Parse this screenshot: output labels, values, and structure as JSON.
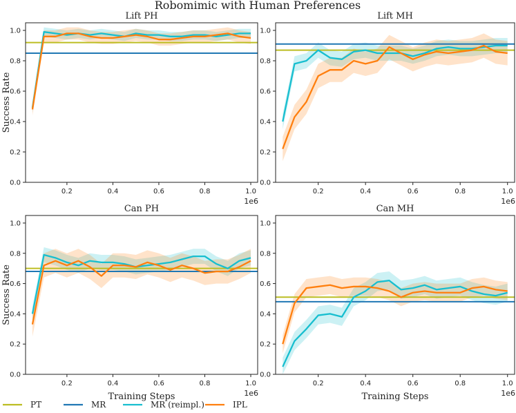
{
  "figure": {
    "title": "Robomimic with Human Preferences",
    "xlabel": "Training Steps",
    "ylabel": "Success Rate",
    "x_exponent_label": "1e6"
  },
  "legend": {
    "entries": [
      {
        "name": "PT",
        "color": "#bcbd22"
      },
      {
        "name": "MR",
        "color": "#1f77b4"
      },
      {
        "name": "MR (reimpl.)",
        "color": "#17becf"
      },
      {
        "name": "IPL",
        "color": "#ff7f0e"
      }
    ]
  },
  "chart_data": [
    {
      "type": "line",
      "title": "Lift PH",
      "xlabel": "",
      "ylabel": "Success Rate",
      "xlim": [
        0.02,
        1.03
      ],
      "ylim": [
        0.0,
        1.05
      ],
      "xticks": [
        "0.2",
        "0.4",
        "0.6",
        "0.8",
        "1.0"
      ],
      "yticks": [
        "0.0",
        "0.2",
        "0.4",
        "0.6",
        "0.8",
        "1.0"
      ],
      "baselines": [
        {
          "name": "PT",
          "value": 0.92
        },
        {
          "name": "MR",
          "value": 0.85
        }
      ],
      "x": [
        0.05,
        0.1,
        0.15,
        0.2,
        0.25,
        0.3,
        0.35,
        0.4,
        0.45,
        0.5,
        0.55,
        0.6,
        0.65,
        0.7,
        0.75,
        0.8,
        0.85,
        0.9,
        0.95,
        1.0
      ],
      "series": [
        {
          "name": "MR (reimpl.)",
          "values": [
            0.49,
            0.99,
            0.98,
            0.97,
            0.98,
            0.97,
            0.98,
            0.97,
            0.96,
            0.98,
            0.97,
            0.97,
            0.96,
            0.96,
            0.97,
            0.97,
            0.96,
            0.97,
            0.98,
            0.98
          ],
          "band": 0.03
        },
        {
          "name": "IPL",
          "values": [
            0.48,
            0.96,
            0.96,
            0.98,
            0.98,
            0.96,
            0.95,
            0.95,
            0.96,
            0.97,
            0.96,
            0.94,
            0.94,
            0.95,
            0.96,
            0.96,
            0.97,
            0.98,
            0.96,
            0.95
          ],
          "band": 0.04
        }
      ]
    },
    {
      "type": "line",
      "title": "Lift MH",
      "xlabel": "",
      "ylabel": "",
      "xlim": [
        0.02,
        1.03
      ],
      "ylim": [
        0.0,
        1.05
      ],
      "xticks": [
        "0.2",
        "0.4",
        "0.6",
        "0.8",
        "1.0"
      ],
      "yticks": [
        "0.0",
        "0.2",
        "0.4",
        "0.6",
        "0.8",
        "1.0"
      ],
      "baselines": [
        {
          "name": "PT",
          "value": 0.87
        },
        {
          "name": "MR",
          "value": 0.91
        }
      ],
      "x": [
        0.05,
        0.1,
        0.15,
        0.2,
        0.25,
        0.3,
        0.35,
        0.4,
        0.45,
        0.5,
        0.55,
        0.6,
        0.65,
        0.7,
        0.75,
        0.8,
        0.85,
        0.9,
        0.95,
        1.0
      ],
      "series": [
        {
          "name": "MR (reimpl.)",
          "values": [
            0.4,
            0.78,
            0.8,
            0.87,
            0.82,
            0.81,
            0.86,
            0.87,
            0.85,
            0.85,
            0.85,
            0.83,
            0.85,
            0.88,
            0.89,
            0.88,
            0.88,
            0.89,
            0.9,
            0.9
          ],
          "band": 0.05
        },
        {
          "name": "IPL",
          "values": [
            0.22,
            0.43,
            0.53,
            0.7,
            0.74,
            0.74,
            0.8,
            0.78,
            0.8,
            0.89,
            0.85,
            0.81,
            0.84,
            0.86,
            0.85,
            0.86,
            0.87,
            0.9,
            0.86,
            0.85
          ],
          "band": 0.08
        }
      ]
    },
    {
      "type": "line",
      "title": "Can PH",
      "xlabel": "Training Steps",
      "ylabel": "Success Rate",
      "xlim": [
        0.02,
        1.03
      ],
      "ylim": [
        0.0,
        1.05
      ],
      "xticks": [
        "0.2",
        "0.4",
        "0.6",
        "0.8",
        "1.0"
      ],
      "yticks": [
        "0.0",
        "0.2",
        "0.4",
        "0.6",
        "0.8",
        "1.0"
      ],
      "baselines": [
        {
          "name": "PT",
          "value": 0.7
        },
        {
          "name": "MR",
          "value": 0.68
        }
      ],
      "x": [
        0.05,
        0.1,
        0.15,
        0.2,
        0.25,
        0.3,
        0.35,
        0.4,
        0.45,
        0.5,
        0.55,
        0.6,
        0.65,
        0.7,
        0.75,
        0.8,
        0.85,
        0.9,
        0.95,
        1.0
      ],
      "series": [
        {
          "name": "MR (reimpl.)",
          "values": [
            0.4,
            0.79,
            0.77,
            0.74,
            0.72,
            0.75,
            0.74,
            0.74,
            0.73,
            0.71,
            0.72,
            0.73,
            0.74,
            0.76,
            0.78,
            0.78,
            0.73,
            0.7,
            0.75,
            0.77
          ],
          "band": 0.05
        },
        {
          "name": "IPL",
          "values": [
            0.33,
            0.72,
            0.75,
            0.72,
            0.75,
            0.71,
            0.65,
            0.72,
            0.72,
            0.71,
            0.74,
            0.72,
            0.69,
            0.72,
            0.7,
            0.67,
            0.68,
            0.68,
            0.71,
            0.75
          ],
          "band": 0.08
        }
      ]
    },
    {
      "type": "line",
      "title": "Can MH",
      "xlabel": "Training Steps",
      "ylabel": "",
      "xlim": [
        0.02,
        1.03
      ],
      "ylim": [
        0.0,
        1.05
      ],
      "xticks": [
        "0.2",
        "0.4",
        "0.6",
        "0.8",
        "1.0"
      ],
      "yticks": [
        "0.0",
        "0.2",
        "0.4",
        "0.6",
        "0.8",
        "1.0"
      ],
      "baselines": [
        {
          "name": "PT",
          "value": 0.51
        },
        {
          "name": "MR",
          "value": 0.48
        }
      ],
      "x": [
        0.05,
        0.1,
        0.15,
        0.2,
        0.25,
        0.3,
        0.35,
        0.4,
        0.45,
        0.5,
        0.55,
        0.6,
        0.65,
        0.7,
        0.75,
        0.8,
        0.85,
        0.9,
        0.95,
        1.0
      ],
      "series": [
        {
          "name": "MR (reimpl.)",
          "values": [
            0.05,
            0.22,
            0.3,
            0.39,
            0.4,
            0.38,
            0.51,
            0.55,
            0.61,
            0.62,
            0.56,
            0.57,
            0.59,
            0.56,
            0.57,
            0.58,
            0.55,
            0.53,
            0.52,
            0.54
          ],
          "band": 0.06
        },
        {
          "name": "IPL",
          "values": [
            0.2,
            0.47,
            0.57,
            0.58,
            0.59,
            0.57,
            0.58,
            0.58,
            0.57,
            0.55,
            0.51,
            0.54,
            0.55,
            0.54,
            0.54,
            0.54,
            0.57,
            0.58,
            0.56,
            0.55
          ],
          "band": 0.06
        }
      ]
    }
  ]
}
